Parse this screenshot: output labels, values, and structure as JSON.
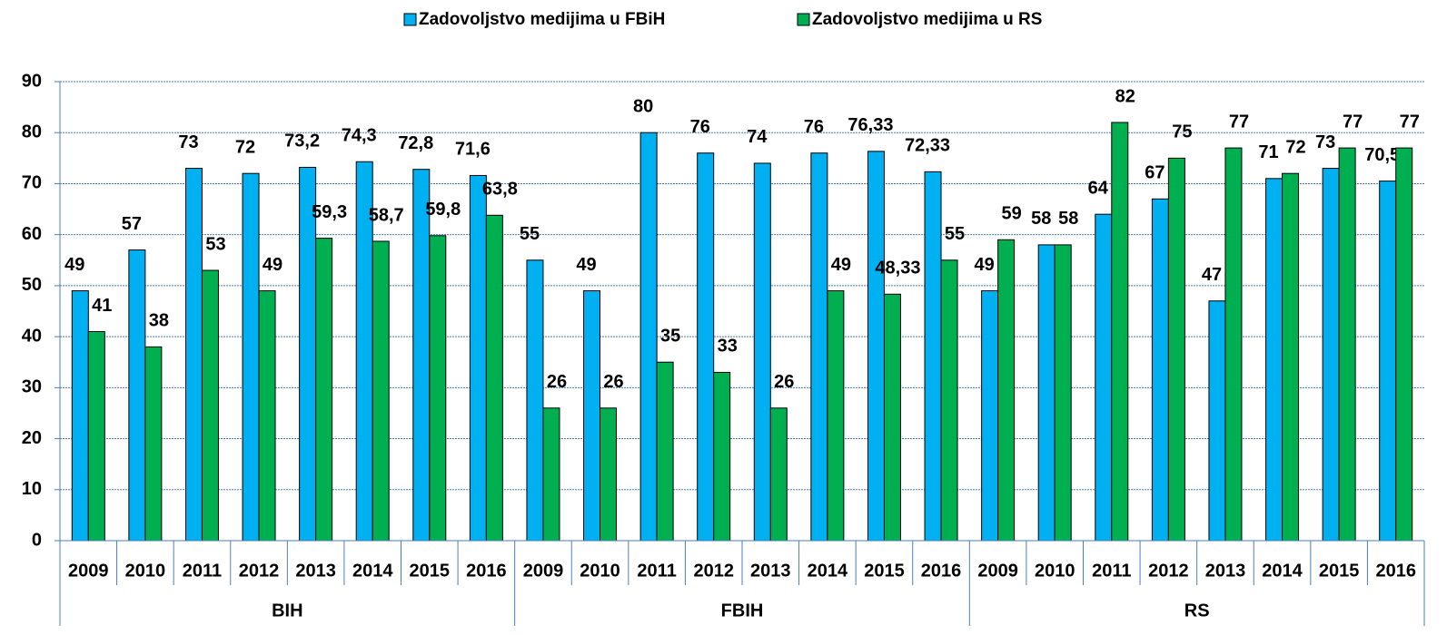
{
  "chart_data": {
    "type": "bar",
    "categories": [
      "2009",
      "2010",
      "2011",
      "2012",
      "2013",
      "2014",
      "2015",
      "2016",
      "2009",
      "2010",
      "2011",
      "2012",
      "2013",
      "2014",
      "2015",
      "2016",
      "2009",
      "2010",
      "2011",
      "2012",
      "2013",
      "2014",
      "2015",
      "2016"
    ],
    "groups": [
      "BIH",
      "FBIH",
      "RS"
    ],
    "series": [
      {
        "name": "Zadovoljstvo medijima u FBiH",
        "color": "#00B0F0",
        "values": [
          49,
          57,
          73,
          72,
          73.2,
          74.3,
          72.8,
          71.6,
          55,
          49,
          80,
          76,
          74,
          76,
          76.33,
          72.33,
          49,
          58,
          64,
          67,
          47,
          71,
          73,
          70.5
        ],
        "value_labels": [
          "49",
          "57",
          "73",
          "72",
          "73,2",
          "74,3",
          "72,8",
          "71,6",
          "55",
          "49",
          "80",
          "76",
          "74",
          "76",
          "76,33",
          "72,33",
          "49",
          "58",
          "64",
          "67",
          "47",
          "71",
          "73",
          "70,5"
        ]
      },
      {
        "name": "Zadovoljstvo medijima u RS",
        "color": "#00B050",
        "values": [
          41,
          38,
          53,
          49,
          59.3,
          58.7,
          59.8,
          63.8,
          26,
          26,
          35,
          33,
          26,
          49,
          48.33,
          55,
          59,
          58,
          82,
          75,
          77,
          72,
          77,
          77
        ],
        "value_labels": [
          "41",
          "38",
          "53",
          "49",
          "59,3",
          "58,7",
          "59,8",
          "63,8",
          "26",
          "26",
          "35",
          "33",
          "26",
          "49",
          "48,33",
          "55",
          "59",
          "58",
          "82",
          "75",
          "77",
          "72",
          "77",
          "77"
        ]
      }
    ],
    "ylim": [
      0,
      90
    ],
    "yticks": [
      0,
      10,
      20,
      30,
      40,
      50,
      60,
      70,
      80,
      90
    ],
    "grid": true,
    "legend": "top"
  }
}
